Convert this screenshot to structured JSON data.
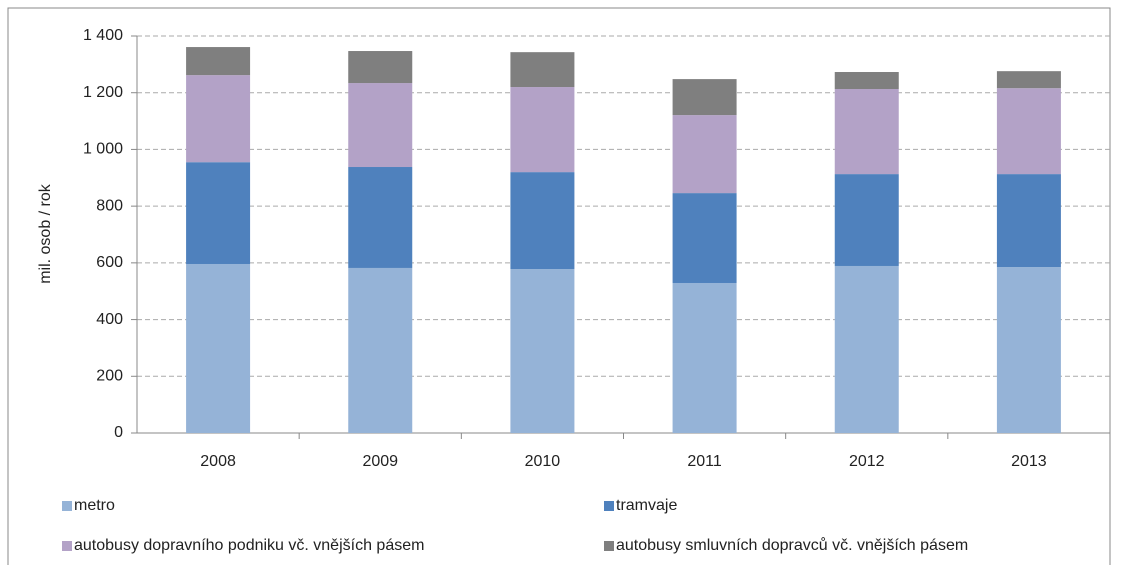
{
  "chart_data": {
    "type": "stacked_bar",
    "y_label": "mil. osob / rok",
    "categories": [
      "2008",
      "2009",
      "2010",
      "2011",
      "2012",
      "2013"
    ],
    "series": [
      {
        "name": "metro",
        "color": "#95b3d7",
        "values": [
          596,
          582,
          578,
          529,
          589,
          585
        ]
      },
      {
        "name": "tramvaje",
        "color": "#4f81bd",
        "values": [
          359,
          356,
          342,
          317,
          324,
          328
        ]
      },
      {
        "name": "autobusy dopravního podniku vč. vnějších pásem",
        "color": "#b3a2c7",
        "values": [
          307,
          296,
          300,
          275,
          300,
          303
        ]
      },
      {
        "name": "autobusy smluvních dopravců vč. vnějších pásem",
        "color": "#7f7f7f",
        "values": [
          99,
          113,
          123,
          127,
          60,
          60
        ]
      }
    ],
    "ylim": [
      0,
      1400
    ],
    "yticks": [
      0,
      200,
      400,
      600,
      800,
      {
        "value": 1000,
        "label": "1 000"
      },
      {
        "value": 1200,
        "label": "1 200"
      },
      {
        "value": 1400,
        "label": "1 400"
      }
    ],
    "grid": true,
    "legend": "bottom"
  }
}
